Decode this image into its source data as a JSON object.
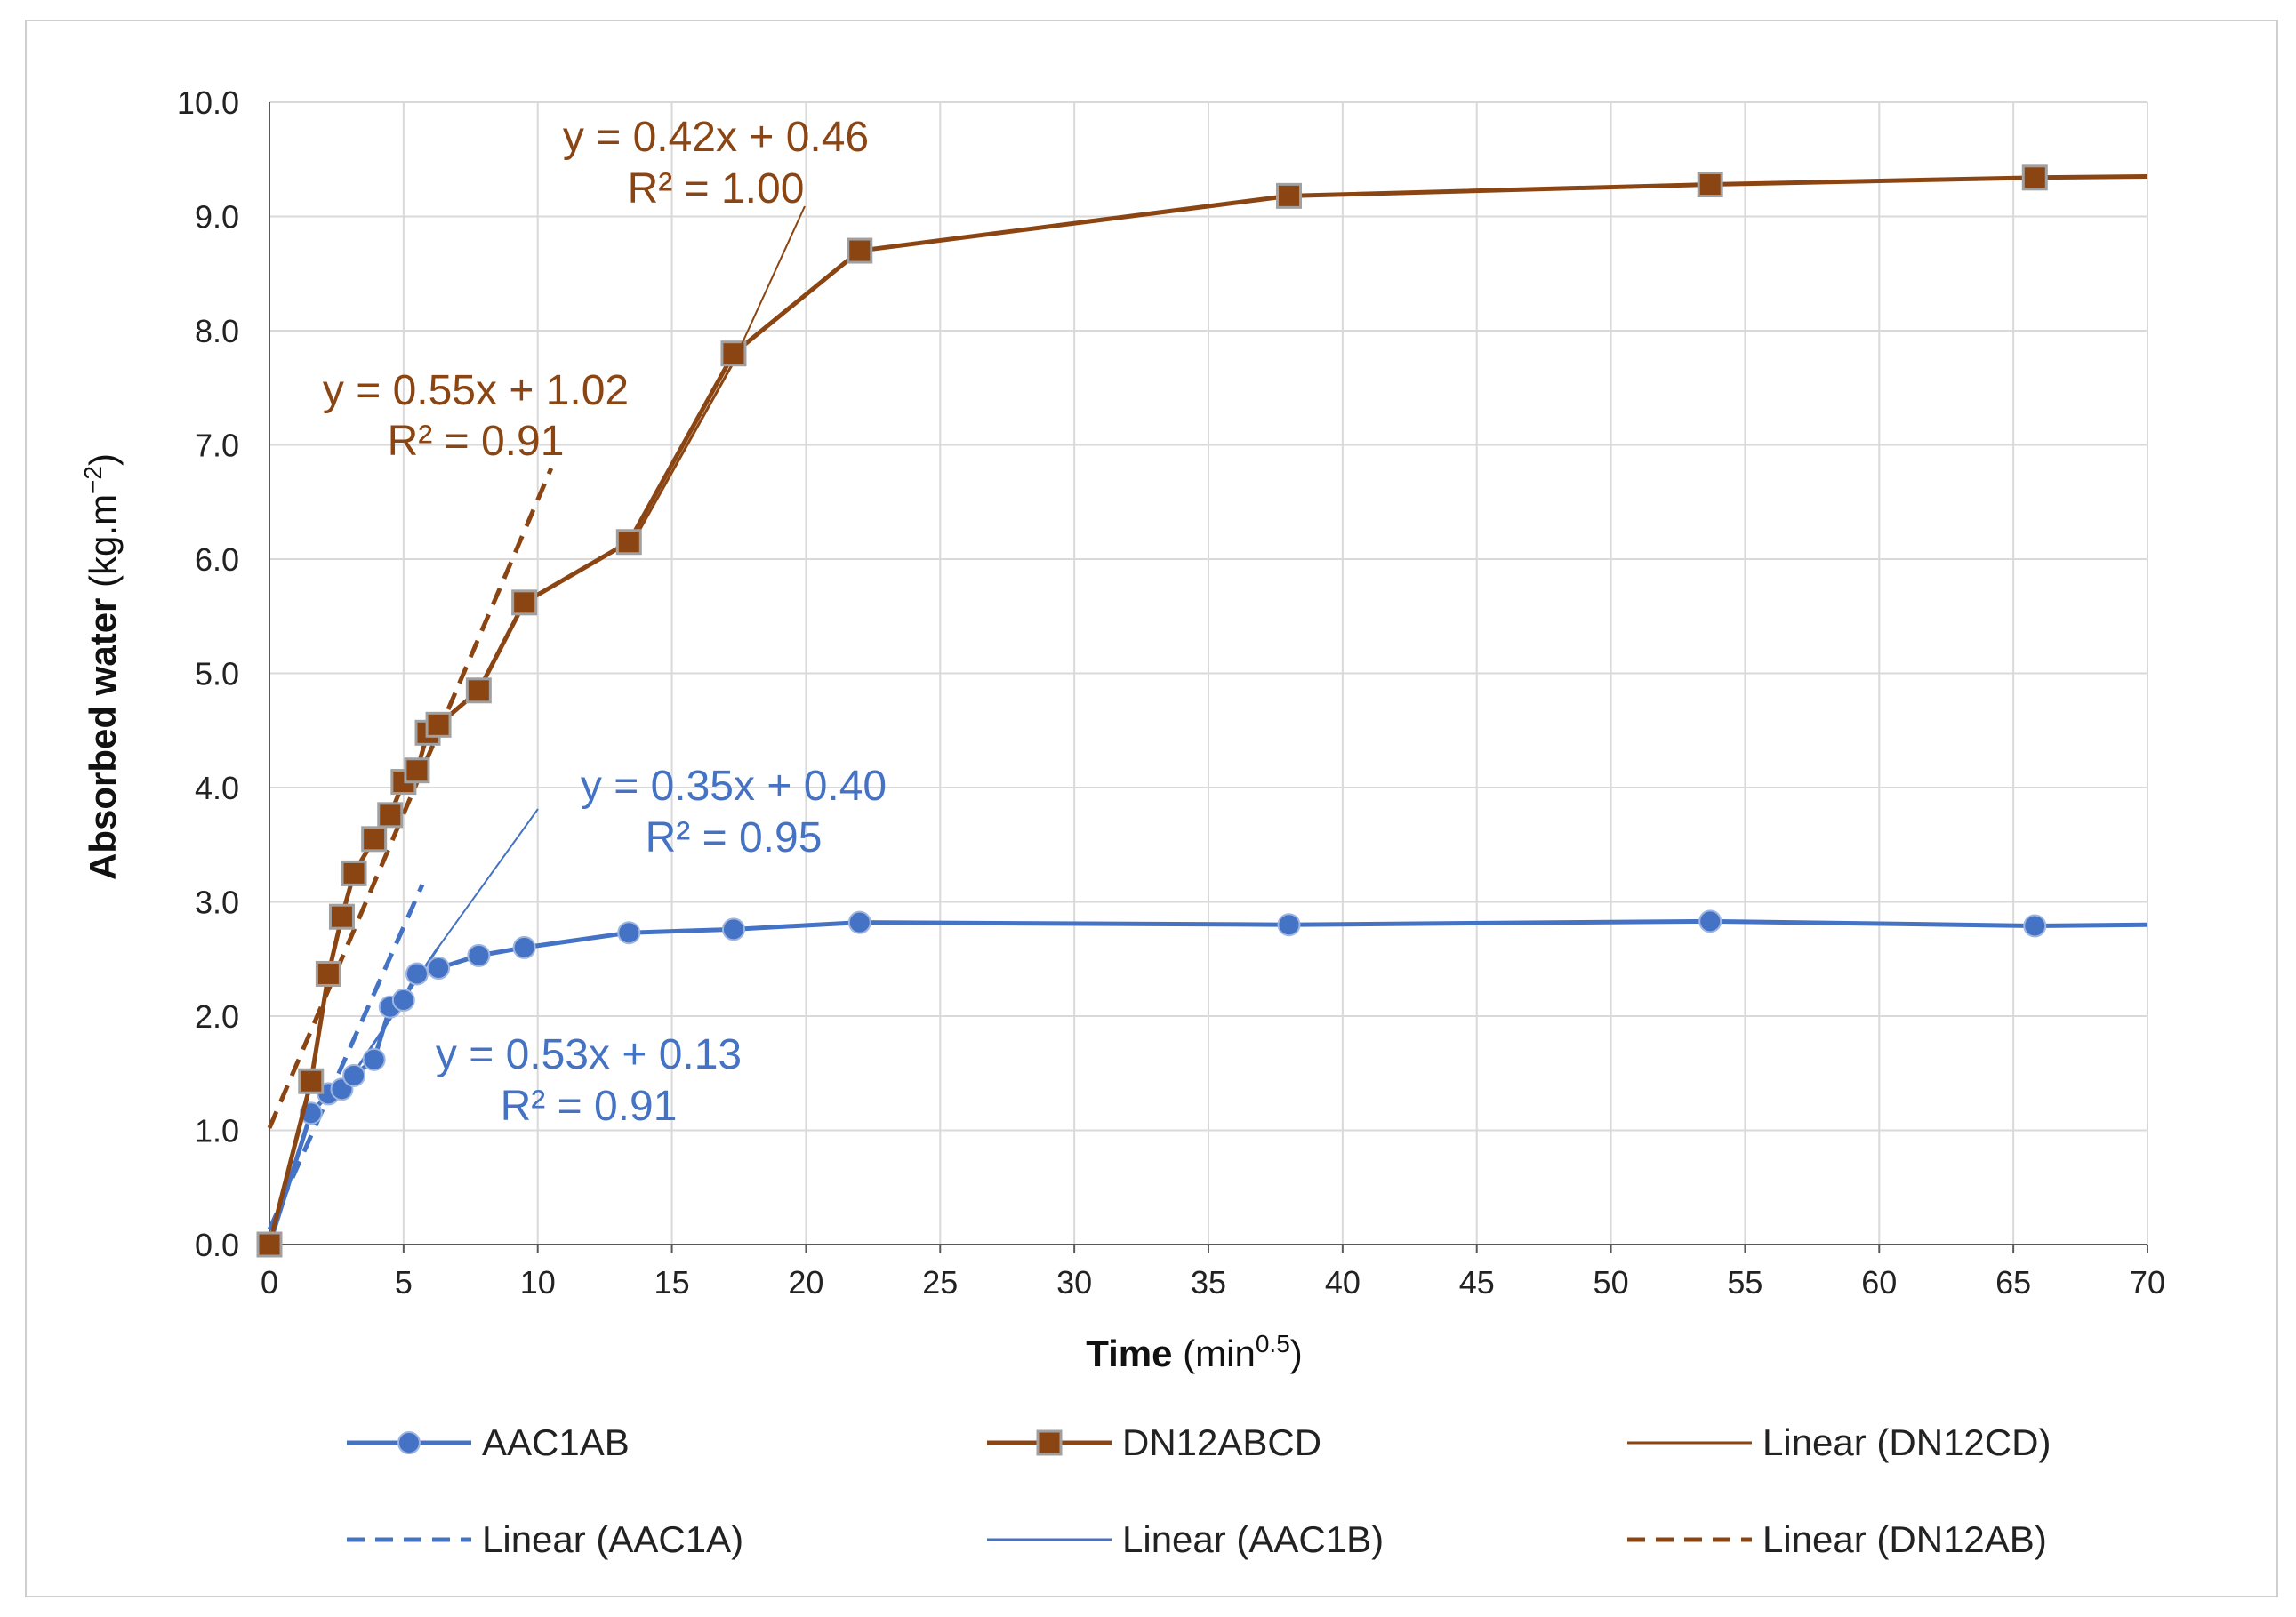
{
  "chart_data": {
    "type": "line",
    "xlabel_bold": "Time",
    "xlabel_unit": " (min",
    "xlabel_sup": "0.5",
    "xlabel_close": ")",
    "ylabel_bold": "Absorbed water",
    "ylabel_unit": " (kg.m",
    "ylabel_sup": "−2",
    "ylabel_close": ")",
    "xlim": [
      0,
      70
    ],
    "ylim": [
      0,
      10
    ],
    "xticks": [
      0,
      5,
      10,
      15,
      20,
      25,
      30,
      35,
      40,
      45,
      50,
      55,
      60,
      65,
      70
    ],
    "yticks": [
      "0.0",
      "1.0",
      "2.0",
      "3.0",
      "4.0",
      "5.0",
      "6.0",
      "7.0",
      "8.0",
      "9.0",
      "10.0"
    ],
    "grid": true,
    "colors": {
      "blue": "#4472C4",
      "brown": "#8B4513",
      "gray": "#9E9E9E"
    },
    "series": [
      {
        "name": "AAC1AB",
        "marker": "circle",
        "color": "#4472C4",
        "x": [
          0,
          1.55,
          2.2,
          2.7,
          3.15,
          3.9,
          4.5,
          5.0,
          5.5,
          6.3,
          7.8,
          9.5,
          13.4,
          17.3,
          22.0,
          38.0,
          53.7,
          65.8,
          70.0
        ],
        "y": [
          0.0,
          1.15,
          1.32,
          1.36,
          1.48,
          1.62,
          2.08,
          2.14,
          2.37,
          2.42,
          2.53,
          2.6,
          2.73,
          2.76,
          2.82,
          2.8,
          2.83,
          2.79,
          2.8
        ]
      },
      {
        "name": "DN12ABCD",
        "marker": "square",
        "color": "#8B4513",
        "x": [
          0,
          1.55,
          2.2,
          2.7,
          3.15,
          3.9,
          4.5,
          5.0,
          5.5,
          5.9,
          6.3,
          7.8,
          9.5,
          13.4,
          17.3,
          22.0,
          38.0,
          53.7,
          65.8,
          70.0
        ],
        "y": [
          0.0,
          1.43,
          2.37,
          2.87,
          3.25,
          3.55,
          3.76,
          4.05,
          4.15,
          4.48,
          4.55,
          4.85,
          5.62,
          6.15,
          7.8,
          8.7,
          9.18,
          9.28,
          9.34,
          9.35
        ]
      }
    ],
    "trendlines": [
      {
        "name": "Linear (DN12CD)",
        "color": "#8B4513",
        "dash": "solid",
        "slope": 0.42,
        "intercept": 0.46,
        "x_range": [
          13.4,
          17.3
        ]
      },
      {
        "name": "Linear (AAC1A)",
        "color": "#4472C4",
        "dash": "dashed",
        "slope": 0.53,
        "intercept": 0.13,
        "x_range": [
          0,
          5.7
        ]
      },
      {
        "name": "Linear (AAC1B)",
        "color": "#4472C4",
        "dash": "solid",
        "slope": 0.35,
        "intercept": 0.4,
        "x_range": [
          3.0,
          6.3
        ]
      },
      {
        "name": "Linear (DN12AB)",
        "color": "#8B4513",
        "dash": "dashed",
        "slope": 0.55,
        "intercept": 1.02,
        "x_range": [
          0,
          10.5
        ]
      }
    ],
    "annotations": [
      {
        "line1": "y = 0.42x + 0.46",
        "line2": "R² = 1.00",
        "color": "#8B4513",
        "leader_to_x": 17.3
      },
      {
        "line1": "y = 0.55x + 1.02",
        "line2": "R² = 0.91",
        "color": "#8B4513"
      },
      {
        "line1": "y = 0.35x + 0.40",
        "line2": "R² = 0.95",
        "color": "#4472C4",
        "leader_to_x": 6.3
      },
      {
        "line1": "y = 0.53x + 0.13",
        "line2": "R² = 0.91",
        "color": "#4472C4"
      }
    ],
    "legend": [
      {
        "label": "AAC1AB",
        "color": "#4472C4",
        "style": "solid",
        "marker": "circle"
      },
      {
        "label": "DN12ABCD",
        "color": "#8B4513",
        "style": "solid",
        "marker": "square"
      },
      {
        "label": "Linear (DN12CD)",
        "color": "#8B4513",
        "style": "thin",
        "marker": "none"
      },
      {
        "label": "Linear (AAC1A)",
        "color": "#4472C4",
        "style": "dashed",
        "marker": "none"
      },
      {
        "label": "Linear (AAC1B)",
        "color": "#4472C4",
        "style": "thin",
        "marker": "none"
      },
      {
        "label": "Linear (DN12AB)",
        "color": "#8B4513",
        "style": "dashed",
        "marker": "none"
      }
    ]
  }
}
